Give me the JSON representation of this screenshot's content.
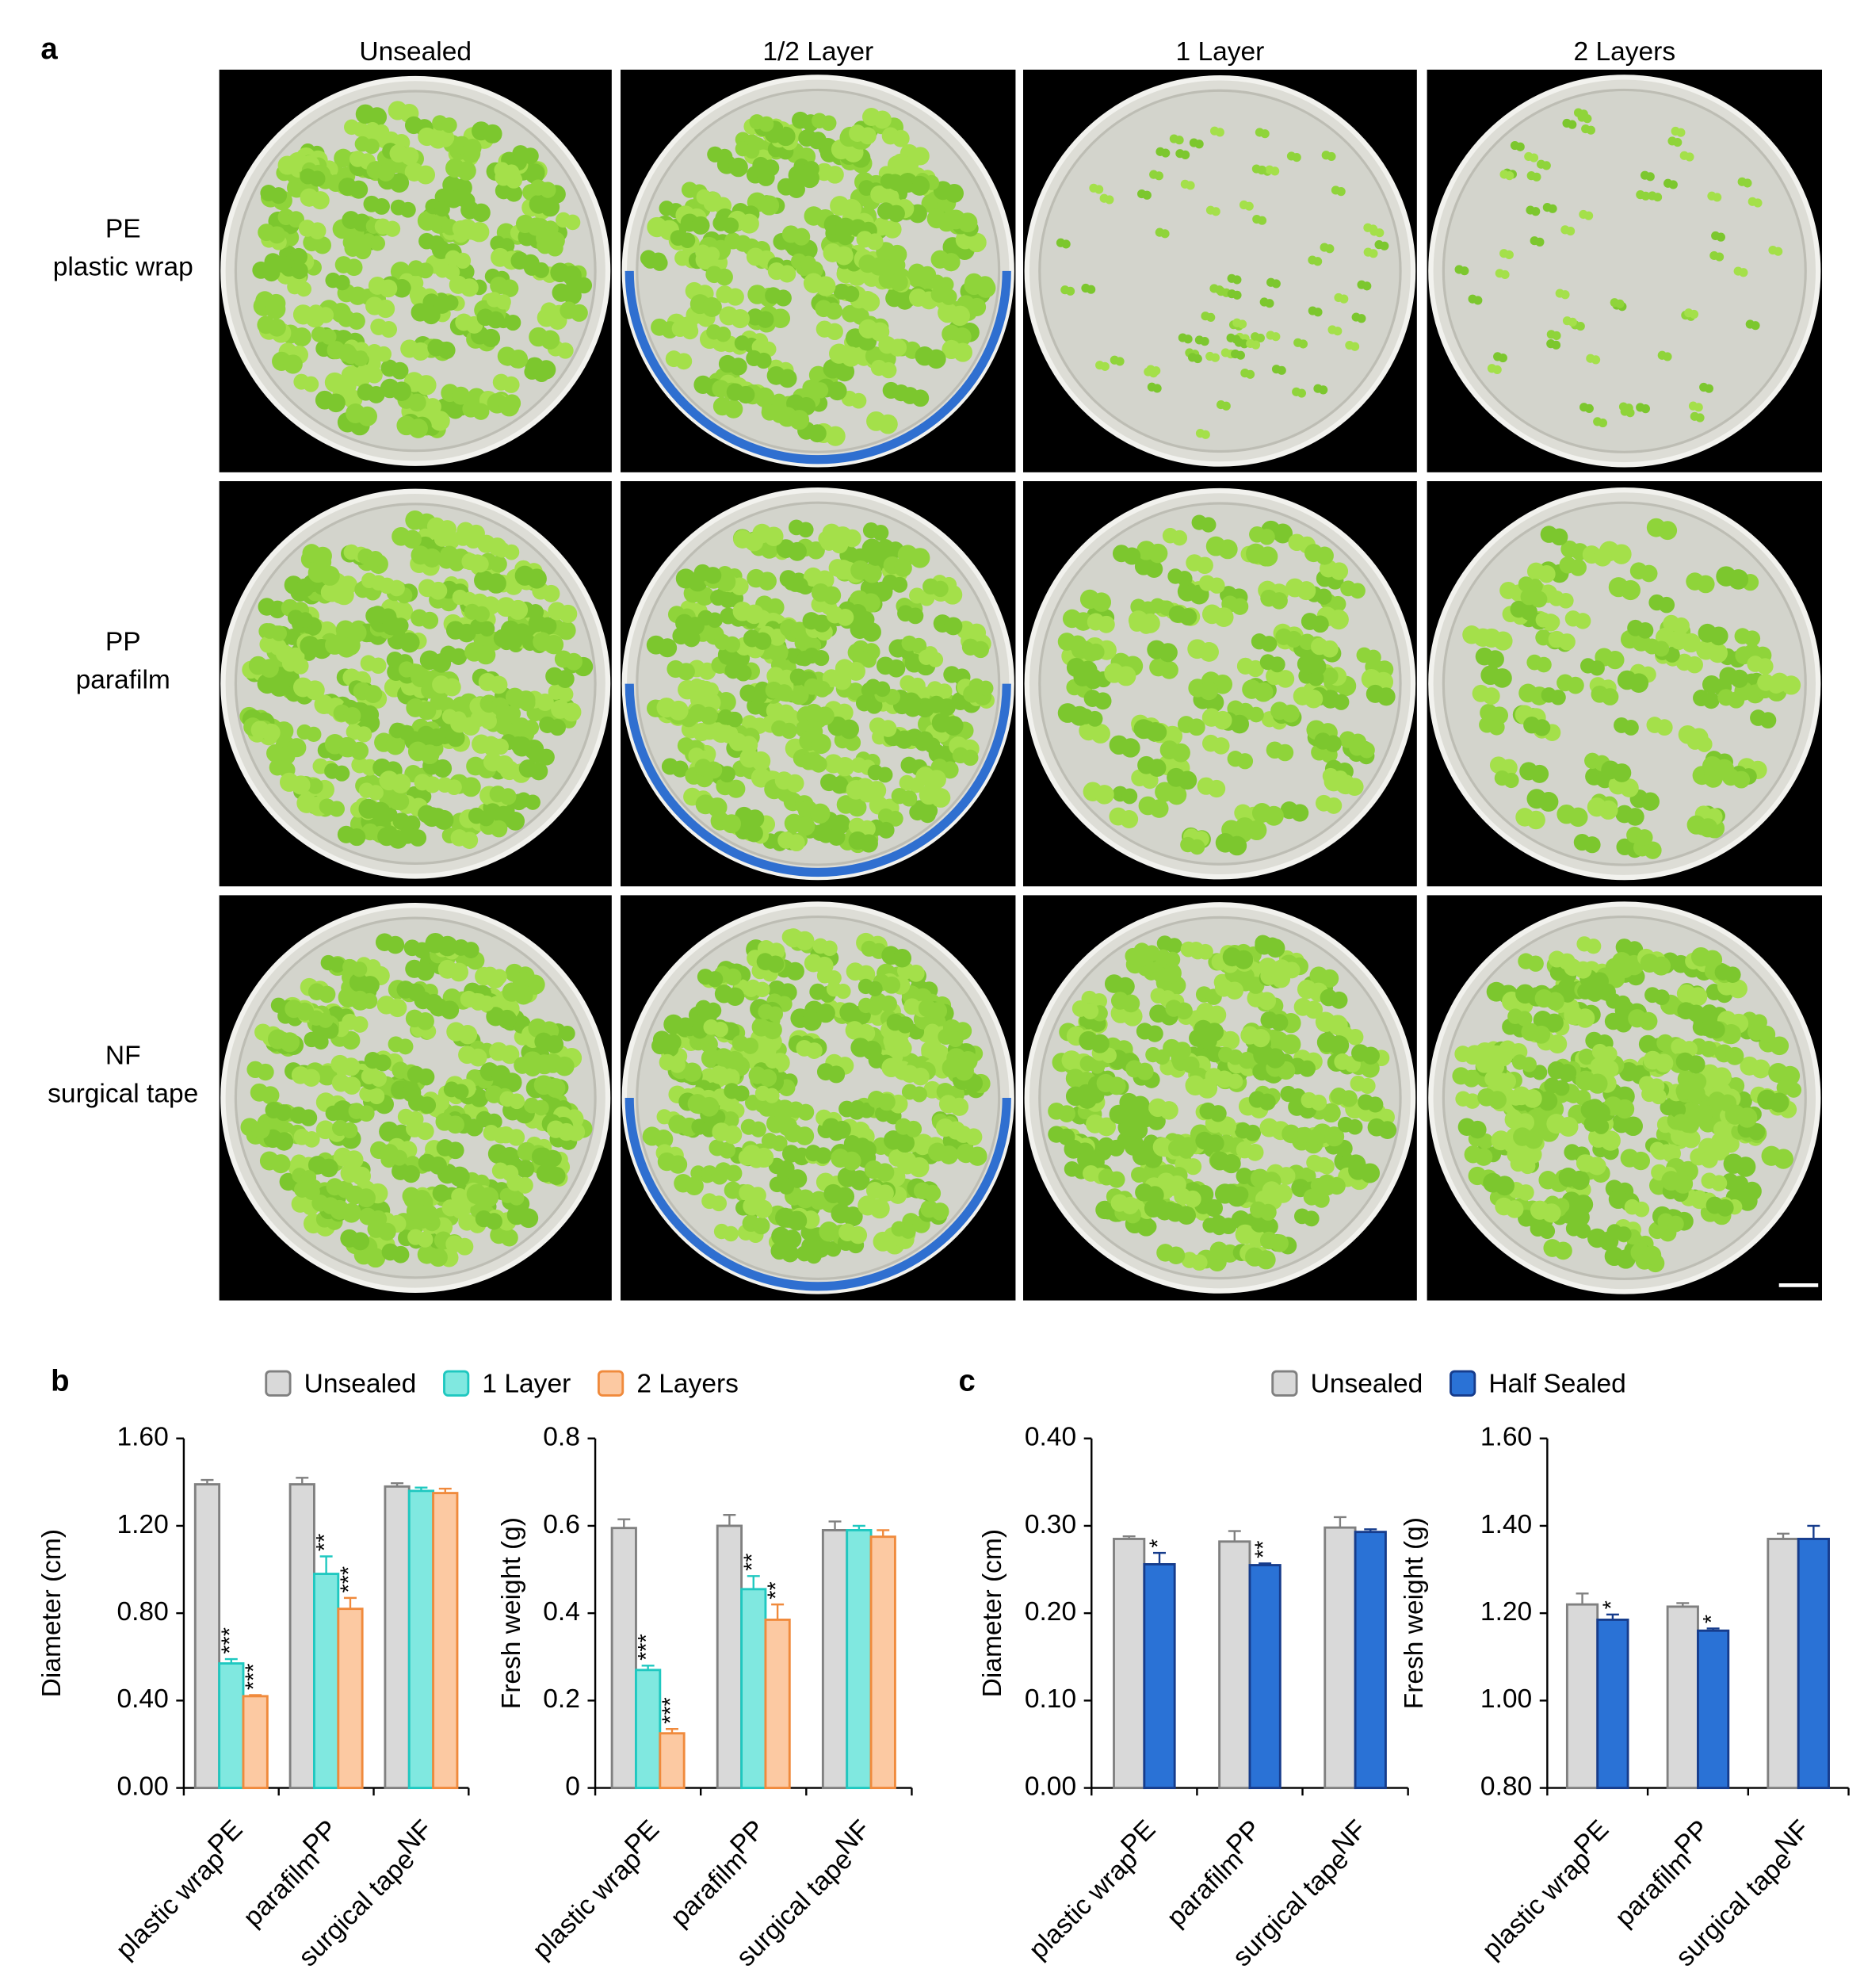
{
  "panel_a": {
    "label": "a",
    "columns": [
      "Unsealed",
      "1/2 Layer",
      "1 Layer",
      "2 Layers"
    ],
    "rows": [
      [
        "PE",
        "plastic wrap"
      ],
      [
        "PP",
        "parafilm"
      ],
      [
        "NF",
        "surgical tape"
      ]
    ]
  },
  "chart_data": [
    {
      "type": "bar",
      "panel_label": "b",
      "y_label": "Diameter (cm)",
      "categories": [
        [
          "PE",
          "plastic wrap"
        ],
        [
          "PP",
          "parafilm"
        ],
        [
          "NF",
          "surgical tape"
        ]
      ],
      "ylim": [
        0,
        1.6
      ],
      "yticks": [
        {
          "value": 0,
          "label": "0.00"
        },
        {
          "value": 0.4,
          "label": "0.40"
        },
        {
          "value": 0.8,
          "label": "0.80"
        },
        {
          "value": 1.2,
          "label": "1.20"
        },
        {
          "value": 1.6,
          "label": "1.60"
        }
      ],
      "series": [
        {
          "name": "Unsealed",
          "color": "#d9d9d9",
          "edge_color": "#808080",
          "values": [
            1.39,
            1.39,
            1.38
          ],
          "errors": [
            0.02,
            0.03,
            0.015
          ]
        },
        {
          "name": "1 Layer",
          "color": "#80e8e0",
          "edge_color": "#1fc8c0",
          "values": [
            0.57,
            0.98,
            1.36
          ],
          "errors": [
            0.02,
            0.08,
            0.015
          ],
          "significance": [
            "***",
            "**",
            null
          ]
        },
        {
          "name": "2 Layers",
          "color": "#fcc9a2",
          "edge_color": "#f08a3c",
          "values": [
            0.42,
            0.82,
            1.35
          ],
          "errors": [
            0.005,
            0.05,
            0.02
          ],
          "significance": [
            "***",
            "***",
            null
          ]
        }
      ]
    },
    {
      "type": "bar",
      "y_label": "Fresh weight (g)",
      "categories": [
        [
          "PE",
          "plastic wrap"
        ],
        [
          "PP",
          "parafilm"
        ],
        [
          "NF",
          "surgical tape"
        ]
      ],
      "ylim": [
        0,
        0.8
      ],
      "yticks": [
        0,
        0.2,
        0.4,
        0.6,
        0.8
      ],
      "series": [
        {
          "color": "#d9d9d9",
          "edge_color": "#808080",
          "values": [
            0.595,
            0.6,
            0.59
          ],
          "errors": [
            0.02,
            0.025,
            0.02
          ]
        },
        {
          "color": "#80e8e0",
          "edge_color": "#1fc8c0",
          "values": [
            0.27,
            0.455,
            0.59
          ],
          "errors": [
            0.01,
            0.03,
            0.01
          ],
          "significance": [
            "***",
            "**",
            null
          ]
        },
        {
          "color": "#fcc9a2",
          "edge_color": "#f08a3c",
          "values": [
            0.125,
            0.385,
            0.575
          ],
          "errors": [
            0.01,
            0.035,
            0.015
          ],
          "significance": [
            "***",
            "**",
            null
          ]
        }
      ]
    },
    {
      "type": "bar",
      "panel_label": "c",
      "y_label": "Diameter (cm)",
      "categories": [
        [
          "PE",
          "plastic wrap"
        ],
        [
          "PP",
          "parafilm"
        ],
        [
          "NF",
          "surgical tape"
        ]
      ],
      "ylim": [
        0,
        0.4
      ],
      "yticks": [
        {
          "value": 0,
          "label": "0.00"
        },
        {
          "value": 0.1,
          "label": "0.10"
        },
        {
          "value": 0.2,
          "label": "0.20"
        },
        {
          "value": 0.3,
          "label": "0.30"
        },
        {
          "value": 0.4,
          "label": "0.40"
        }
      ],
      "series": [
        {
          "name": "Unsealed",
          "color": "#d9d9d9",
          "edge_color": "#808080",
          "values": [
            0.285,
            0.282,
            0.298
          ],
          "errors": [
            0.003,
            0.012,
            0.012
          ]
        },
        {
          "name": "Half Sealed",
          "color": "#2a72d6",
          "edge_color": "#163c8c",
          "values": [
            0.256,
            0.255,
            0.293
          ],
          "errors": [
            0.013,
            0.002,
            0.003
          ],
          "significance": [
            "*",
            "**",
            null
          ]
        }
      ]
    },
    {
      "type": "bar",
      "y_label": "Fresh weight (g)",
      "categories": [
        [
          "PE",
          "plastic wrap"
        ],
        [
          "PP",
          "parafilm"
        ],
        [
          "NF",
          "surgical tape"
        ]
      ],
      "ylim": [
        0.8,
        1.6
      ],
      "yticks": [
        {
          "value": 0.8,
          "label": "0.80"
        },
        {
          "value": 1.0,
          "label": "1.00"
        },
        {
          "value": 1.2,
          "label": "1.20"
        },
        {
          "value": 1.4,
          "label": "1.40"
        },
        {
          "value": 1.6,
          "label": "1.60"
        }
      ],
      "series": [
        {
          "color": "#d9d9d9",
          "edge_color": "#808080",
          "values": [
            1.22,
            1.215,
            1.37
          ],
          "errors": [
            0.025,
            0.008,
            0.012
          ]
        },
        {
          "color": "#2a72d6",
          "edge_color": "#163c8c",
          "values": [
            1.185,
            1.16,
            1.37
          ],
          "errors": [
            0.012,
            0.005,
            0.03
          ],
          "significance": [
            "*",
            "*",
            null
          ]
        }
      ]
    }
  ]
}
